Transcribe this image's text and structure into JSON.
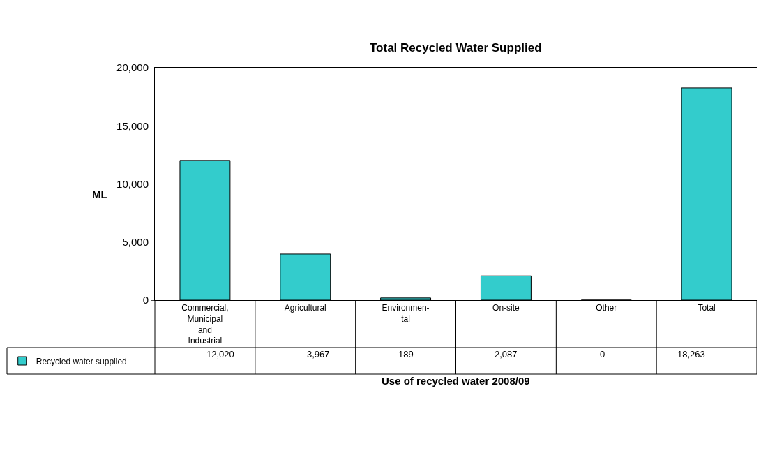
{
  "chart_data": {
    "type": "bar",
    "title": "Total Recycled Water Supplied",
    "xlabel": "Use of recycled water 2008/09",
    "ylabel": "ML",
    "categories": [
      "Commercial,\nMunicipal\nand\nIndustrial",
      "Agricultural",
      "Environmen-\ntal",
      "On-site",
      "Other",
      "Total"
    ],
    "series": [
      {
        "name": "Recycled water supplied",
        "color": "#33cccc",
        "values": [
          12020,
          3967,
          189,
          2087,
          0,
          18263
        ]
      }
    ],
    "value_labels": [
      "12,020",
      "3,967",
      "189",
      "2,087",
      "0",
      "18,263"
    ],
    "ylim": [
      0,
      20000
    ],
    "yticks": [
      0,
      {
        "value": 5000,
        "label": "5,000"
      },
      {
        "value": 10000,
        "label": "10,000"
      },
      {
        "value": 15000,
        "label": "15,000"
      },
      {
        "value": 20000,
        "label": "20,000"
      }
    ],
    "grid": "y",
    "legend": "bottom left"
  }
}
